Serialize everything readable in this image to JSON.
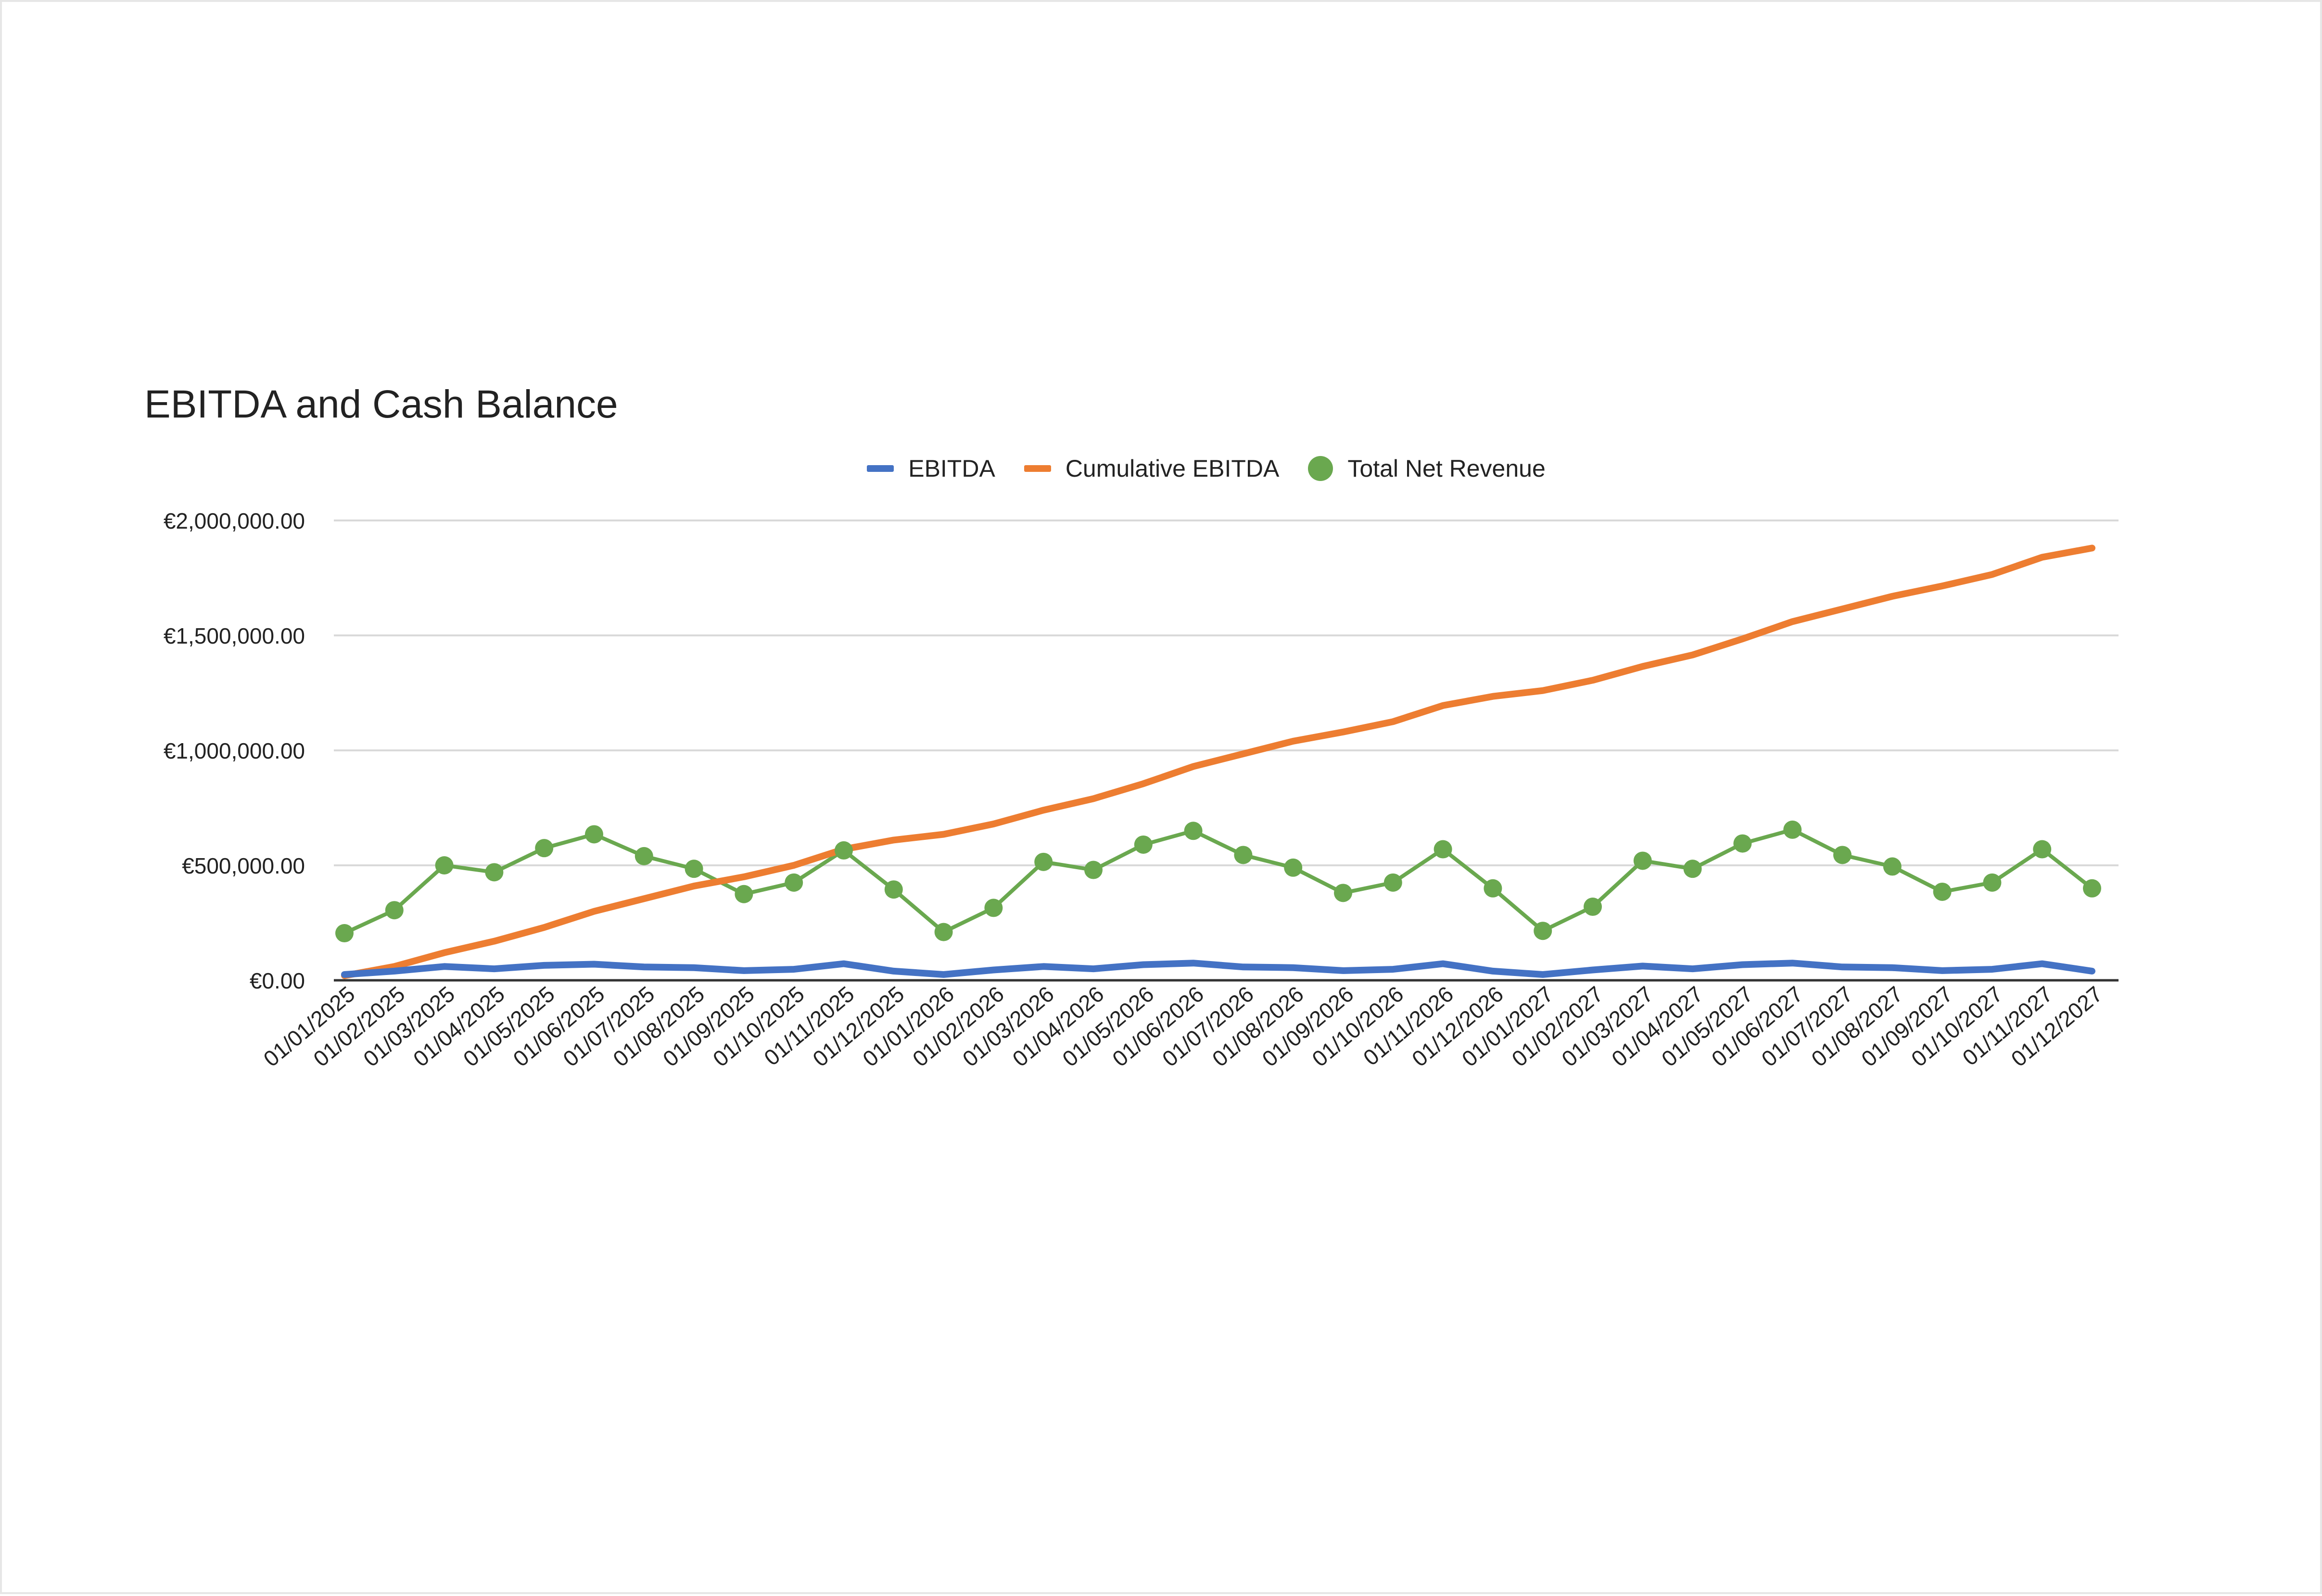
{
  "chart_data": {
    "type": "line",
    "title": "EBITDA and Cash Balance",
    "xlabel": "",
    "ylabel": "",
    "ylim": [
      0,
      2000000
    ],
    "yticks": [
      {
        "value": 0,
        "label": "€0.00"
      },
      {
        "value": 500000,
        "label": "€500,000.00"
      },
      {
        "value": 1000000,
        "label": "€1,000,000.00"
      },
      {
        "value": 1500000,
        "label": "€1,500,000.00"
      },
      {
        "value": 2000000,
        "label": "€2,000,000.00"
      }
    ],
    "grid": true,
    "legend": "top-center",
    "categories": [
      "01/01/2025",
      "01/02/2025",
      "01/03/2025",
      "01/04/2025",
      "01/05/2025",
      "01/06/2025",
      "01/07/2025",
      "01/08/2025",
      "01/09/2025",
      "01/10/2025",
      "01/11/2025",
      "01/12/2025",
      "01/01/2026",
      "01/02/2026",
      "01/03/2026",
      "01/04/2026",
      "01/05/2026",
      "01/06/2026",
      "01/07/2026",
      "01/08/2026",
      "01/09/2026",
      "01/10/2026",
      "01/11/2026",
      "01/12/2026",
      "01/01/2027",
      "01/02/2027",
      "01/03/2027",
      "01/04/2027",
      "01/05/2027",
      "01/06/2027",
      "01/07/2027",
      "01/08/2027",
      "01/09/2027",
      "01/10/2027",
      "01/11/2027",
      "01/12/2027"
    ],
    "series": [
      {
        "name": "EBITDA",
        "kind": "line",
        "color": "#4472c4",
        "values": [
          25000,
          40000,
          60000,
          50000,
          65000,
          70000,
          58000,
          55000,
          42000,
          48000,
          72000,
          40000,
          25000,
          45000,
          60000,
          50000,
          68000,
          75000,
          58000,
          55000,
          42000,
          48000,
          72000,
          40000,
          25000,
          45000,
          62000,
          50000,
          68000,
          75000,
          58000,
          55000,
          42000,
          48000,
          72000,
          40000
        ]
      },
      {
        "name": "Cumulative EBITDA",
        "kind": "line",
        "color": "#ed7d31",
        "values": [
          20000,
          60000,
          120000,
          170000,
          230000,
          300000,
          355000,
          410000,
          450000,
          500000,
          570000,
          610000,
          635000,
          680000,
          740000,
          790000,
          855000,
          930000,
          985000,
          1040000,
          1080000,
          1125000,
          1195000,
          1235000,
          1260000,
          1305000,
          1365000,
          1415000,
          1485000,
          1560000,
          1615000,
          1670000,
          1715000,
          1765000,
          1840000,
          1880000
        ]
      },
      {
        "name": "Total Net Revenue",
        "kind": "line-markers",
        "color": "#6aa84f",
        "values": [
          205000,
          305000,
          500000,
          470000,
          575000,
          635000,
          540000,
          485000,
          375000,
          425000,
          565000,
          395000,
          210000,
          315000,
          515000,
          480000,
          590000,
          650000,
          545000,
          490000,
          380000,
          425000,
          570000,
          400000,
          215000,
          320000,
          520000,
          485000,
          595000,
          655000,
          545000,
          495000,
          385000,
          425000,
          570000,
          400000
        ]
      }
    ]
  }
}
